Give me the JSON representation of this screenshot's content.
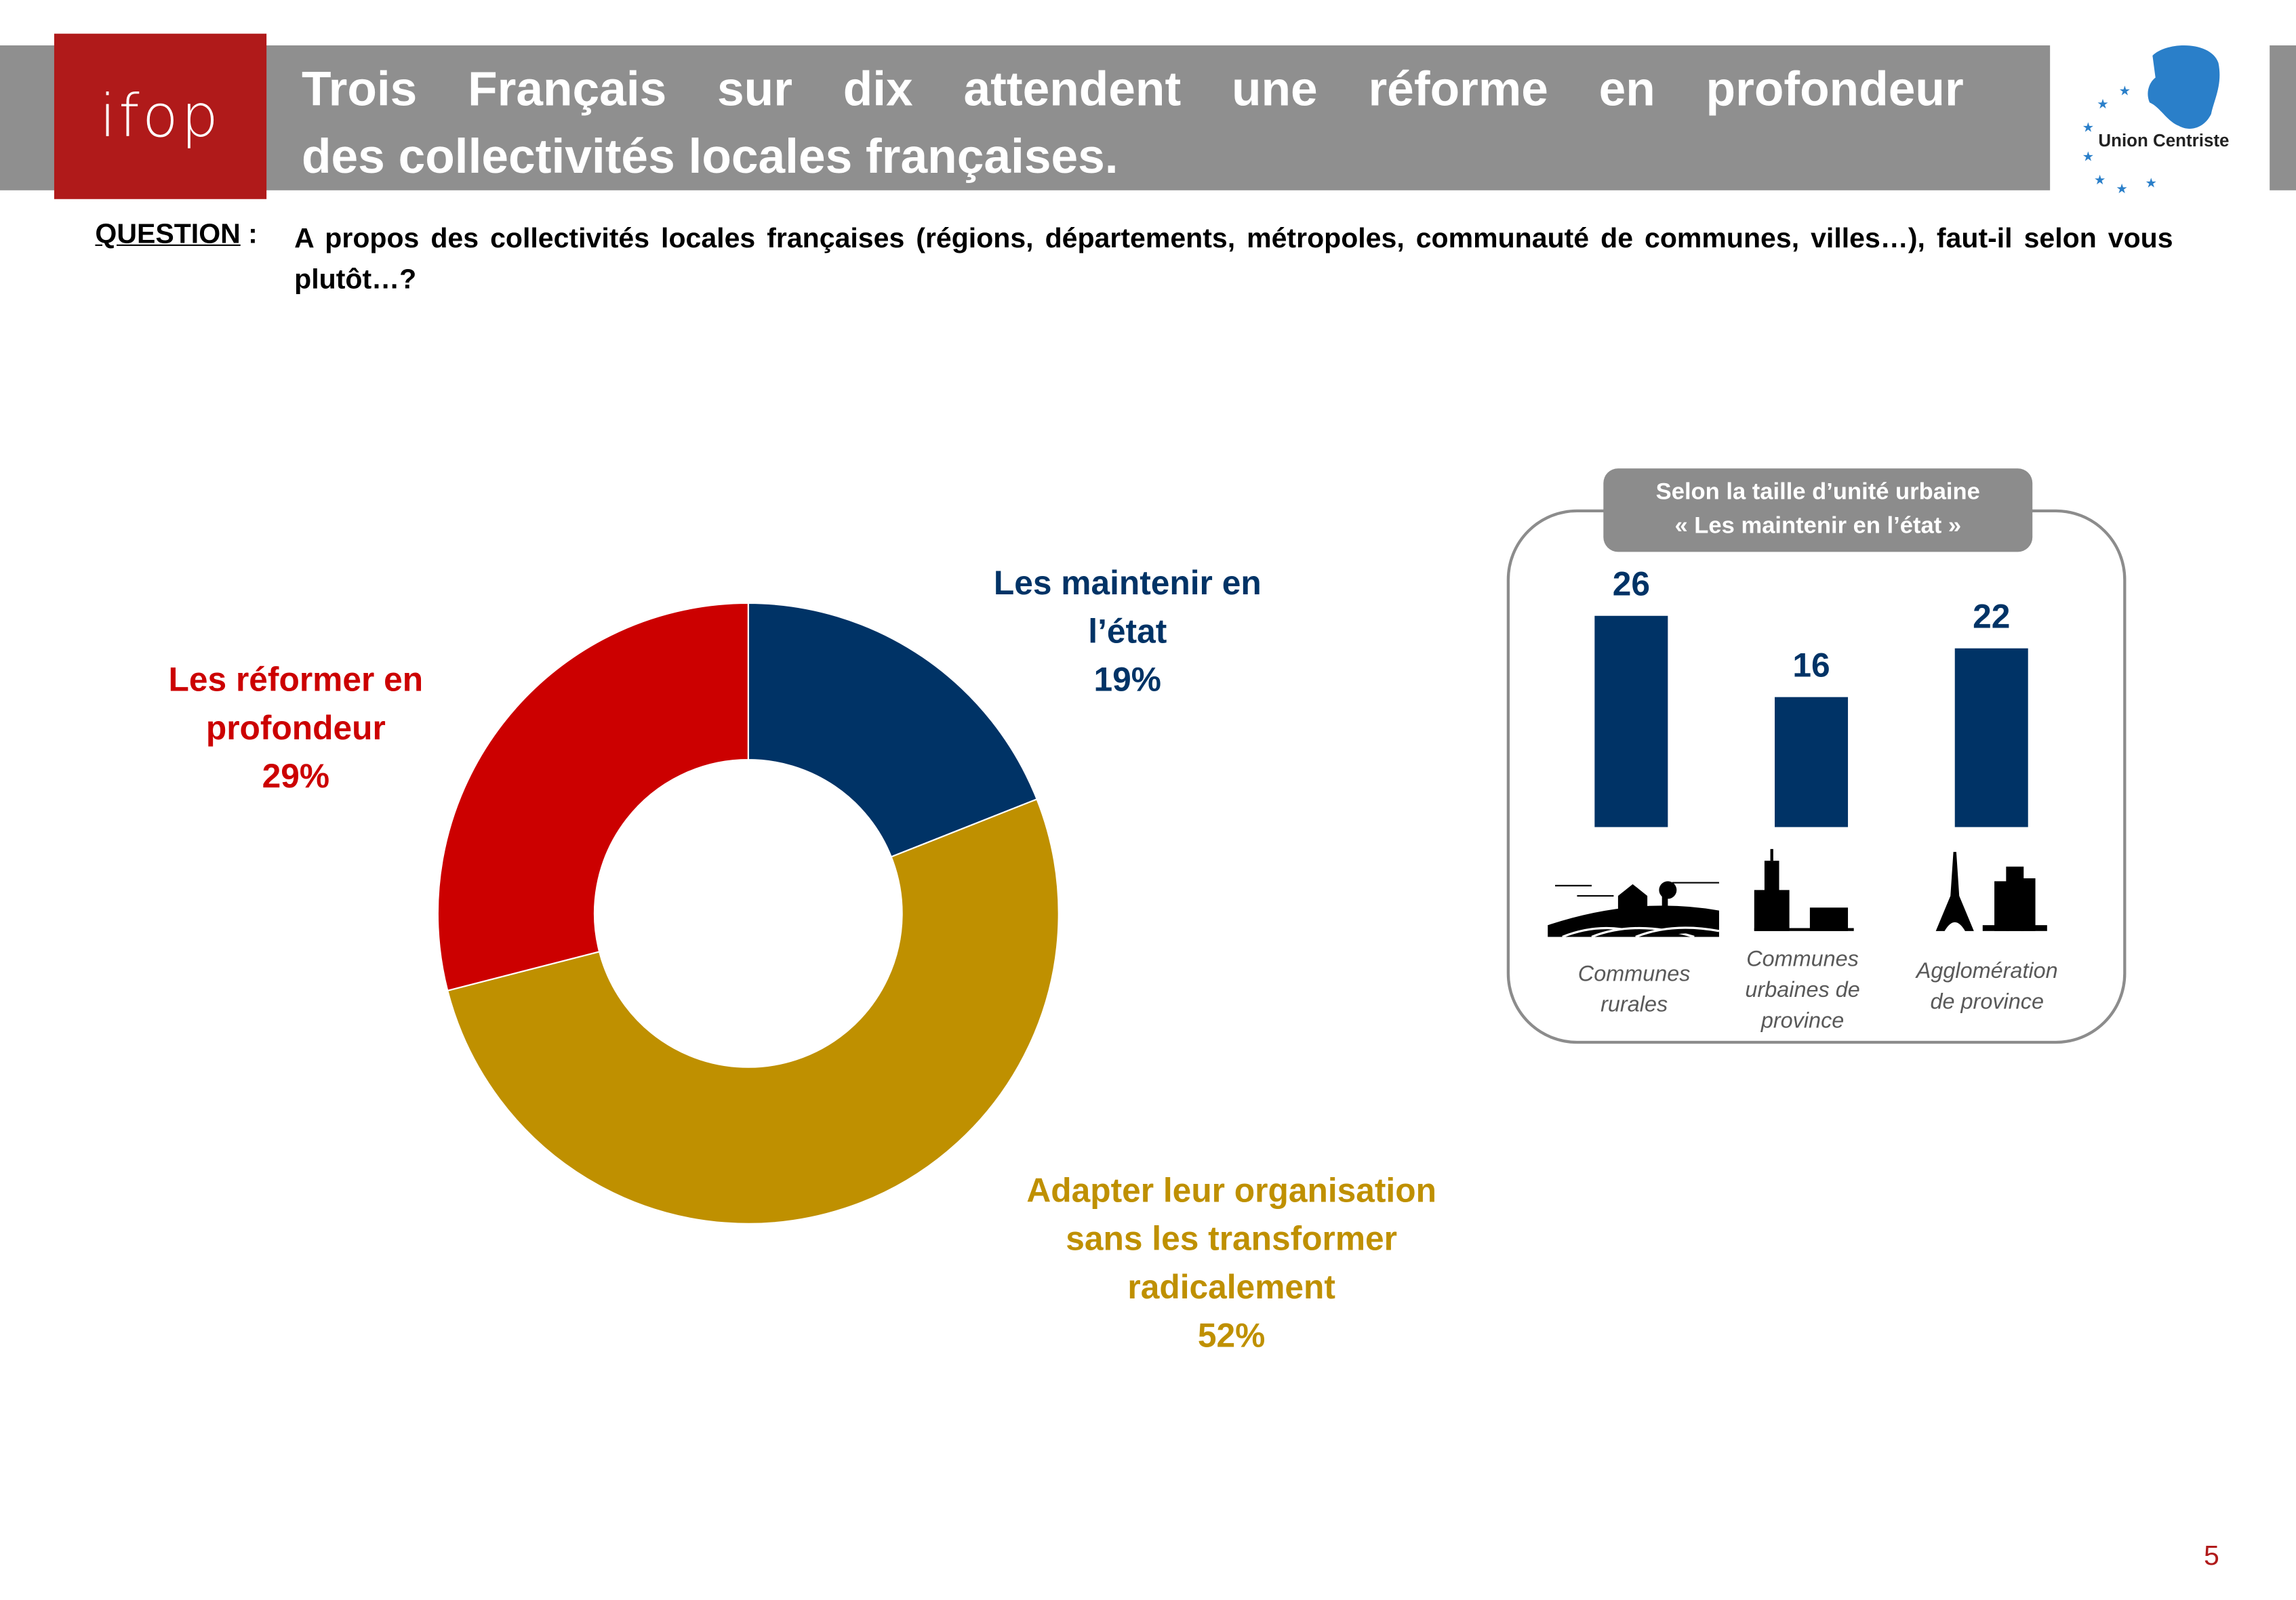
{
  "header": {
    "logo": "ifop",
    "title_line1": "Trois Français sur dix attendent une réforme en profondeur",
    "title_line2": "des collectivités locales françaises.",
    "partner_logo": "Union Centriste"
  },
  "question": {
    "label": "QUESTION",
    "separator": " :",
    "text": "A propos des collectivités locales françaises (régions, départements, métropoles, communauté de communes, villes…), faut-il selon vous plutôt…?"
  },
  "colors": {
    "blue": "#003366",
    "gold": "#BF9000",
    "red": "#CC0000",
    "header_red": "#B01A1A",
    "grey": "#8F8F8F"
  },
  "chart_data": [
    {
      "type": "pie",
      "subtype": "donut",
      "title": "",
      "categories": [
        "Les maintenir en l'état",
        "Adapter leur organisation sans les transformer radicalement",
        "Les réformer en profondeur"
      ],
      "values": [
        19,
        52,
        29
      ],
      "unit": "%",
      "labels": [
        {
          "lines": [
            "Les maintenir en",
            "l’état"
          ],
          "value": "19%"
        },
        {
          "lines": [
            "Adapter leur organisation",
            "sans les transformer",
            "radicalement"
          ],
          "value": "52%"
        },
        {
          "lines": [
            "Les réformer en",
            "profondeur"
          ],
          "value": "29%"
        }
      ],
      "colors": [
        "#003366",
        "#BF9000",
        "#CC0000"
      ]
    },
    {
      "type": "bar",
      "title_line1": "Selon la taille d’unité urbaine",
      "title_line2": "« Les maintenir en l’état »",
      "categories": [
        [
          "Communes",
          "rurales"
        ],
        [
          "Communes",
          "urbaines de",
          "province"
        ],
        [
          "Agglomération",
          "de province"
        ]
      ],
      "icons": [
        "countryside-icon",
        "church-village-icon",
        "eiffel-tower-city-icon"
      ],
      "values": [
        26,
        16,
        22
      ],
      "value_labels": [
        "26",
        "16",
        "22"
      ],
      "ylim": [
        0,
        30
      ],
      "color": "#003366"
    }
  ],
  "footer": {
    "page_number": "5"
  }
}
